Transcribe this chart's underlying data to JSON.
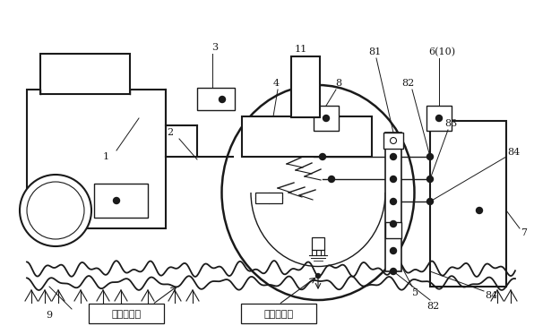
{
  "bg_color": "#ffffff",
  "lc": "#1a1a1a",
  "annotation_hard": "水田硬地面",
  "annotation_surface": "水田上表面",
  "figw": 5.96,
  "figh": 3.64,
  "dpi": 100
}
